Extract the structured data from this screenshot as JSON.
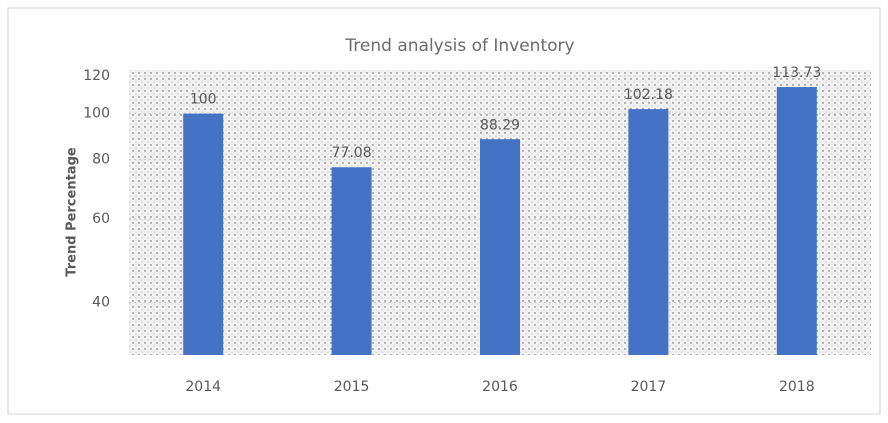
{
  "chart_data": {
    "type": "bar",
    "title": "Trend analysis of Inventory",
    "y_label": "Trend Percentage",
    "categories": [
      "2014",
      "2015",
      "2016",
      "2017",
      "2018"
    ],
    "values": [
      100,
      77.08,
      88.29,
      102.18,
      113.73
    ],
    "value_labels": [
      "100",
      "77.08",
      "88.29",
      "102.18",
      "113.73"
    ],
    "color": "#4472c4",
    "log_scale": true,
    "ylim": [
      31,
      120
    ],
    "yticks": [
      40,
      60,
      80,
      100,
      120
    ],
    "grid": true
  }
}
